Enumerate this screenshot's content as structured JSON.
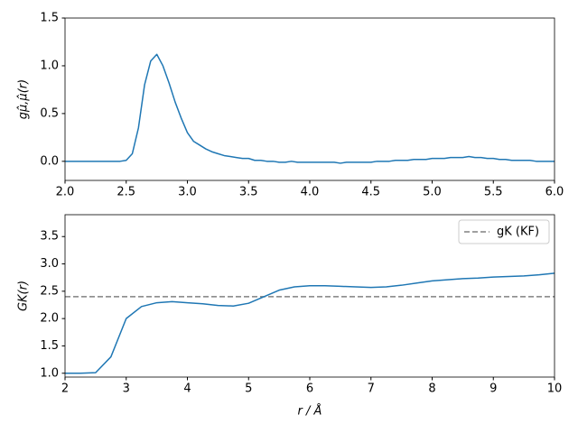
{
  "chart_data": [
    {
      "type": "line",
      "ylabel": "gμ̂,μ̂(r)",
      "x": [
        2.0,
        2.05,
        2.1,
        2.15,
        2.2,
        2.25,
        2.3,
        2.35,
        2.4,
        2.45,
        2.5,
        2.55,
        2.6,
        2.65,
        2.7,
        2.75,
        2.8,
        2.85,
        2.9,
        2.95,
        3.0,
        3.05,
        3.1,
        3.15,
        3.2,
        3.25,
        3.3,
        3.35,
        3.4,
        3.45,
        3.5,
        3.55,
        3.6,
        3.65,
        3.7,
        3.75,
        3.8,
        3.85,
        3.9,
        3.95,
        4.0,
        4.05,
        4.1,
        4.15,
        4.2,
        4.25,
        4.3,
        4.35,
        4.4,
        4.45,
        4.5,
        4.55,
        4.6,
        4.65,
        4.7,
        4.75,
        4.8,
        4.85,
        4.9,
        4.95,
        5.0,
        5.05,
        5.1,
        5.15,
        5.2,
        5.25,
        5.3,
        5.35,
        5.4,
        5.45,
        5.5,
        5.55,
        5.6,
        5.65,
        5.7,
        5.75,
        5.8,
        5.85,
        5.9,
        5.95,
        6.0
      ],
      "series": [
        {
          "color": "#1f77b4",
          "values": [
            0,
            0,
            0,
            0,
            0,
            0,
            0,
            0,
            0,
            0,
            0.01,
            0.08,
            0.35,
            0.8,
            1.05,
            1.12,
            1.0,
            0.82,
            0.62,
            0.45,
            0.3,
            0.21,
            0.17,
            0.13,
            0.1,
            0.08,
            0.06,
            0.05,
            0.04,
            0.03,
            0.03,
            0.01,
            0.01,
            0.0,
            0.0,
            -0.01,
            -0.01,
            0.0,
            -0.01,
            -0.01,
            -0.01,
            -0.01,
            -0.01,
            -0.01,
            -0.01,
            -0.02,
            -0.01,
            -0.01,
            -0.01,
            -0.01,
            -0.01,
            0.0,
            0.0,
            0.0,
            0.01,
            0.01,
            0.01,
            0.02,
            0.02,
            0.02,
            0.03,
            0.03,
            0.03,
            0.04,
            0.04,
            0.04,
            0.05,
            0.04,
            0.04,
            0.03,
            0.03,
            0.02,
            0.02,
            0.01,
            0.01,
            0.01,
            0.01,
            0.0,
            0.0,
            0.0,
            0.0
          ]
        }
      ],
      "xlim": [
        2,
        6
      ],
      "xticks": [
        {
          "value": 2,
          "label": "2.0"
        },
        {
          "value": 2.5,
          "label": "2.5"
        },
        {
          "value": 3,
          "label": "3.0"
        },
        {
          "value": 3.5,
          "label": "3.5"
        },
        {
          "value": 4,
          "label": "4.0"
        },
        {
          "value": 4.5,
          "label": "4.5"
        },
        {
          "value": 5,
          "label": "5.0"
        },
        {
          "value": 5.5,
          "label": "5.5"
        },
        {
          "value": 6,
          "label": "6.0"
        }
      ],
      "ylim": [
        -0.2,
        1.5
      ],
      "yticks": [
        {
          "value": 0,
          "label": "0.0"
        },
        {
          "value": 0.5,
          "label": "0.5"
        },
        {
          "value": 1,
          "label": "1.0"
        },
        {
          "value": 1.5,
          "label": "1.5"
        }
      ]
    },
    {
      "type": "line",
      "xlabel": "r / Å",
      "ylabel": "GK(r)",
      "x": [
        2.0,
        2.25,
        2.5,
        2.75,
        3.0,
        3.25,
        3.5,
        3.75,
        4.0,
        4.25,
        4.5,
        4.75,
        5.0,
        5.25,
        5.5,
        5.75,
        6.0,
        6.25,
        6.5,
        6.75,
        7.0,
        7.25,
        7.5,
        7.75,
        8.0,
        8.25,
        8.5,
        8.75,
        9.0,
        9.25,
        9.5,
        9.75,
        10.0
      ],
      "series": [
        {
          "color": "#1f77b4",
          "values": [
            1.0,
            1.0,
            1.01,
            1.3,
            2.0,
            2.22,
            2.29,
            2.31,
            2.29,
            2.27,
            2.24,
            2.23,
            2.28,
            2.4,
            2.52,
            2.58,
            2.6,
            2.6,
            2.59,
            2.58,
            2.57,
            2.58,
            2.61,
            2.65,
            2.69,
            2.71,
            2.73,
            2.74,
            2.76,
            2.77,
            2.78,
            2.8,
            2.83
          ]
        }
      ],
      "hlines": [
        {
          "name": "gK (KF)",
          "value": 2.4,
          "color": "#808080"
        }
      ],
      "legend": "upper right",
      "xlim": [
        2,
        10
      ],
      "xticks": [
        2,
        3,
        4,
        5,
        6,
        7,
        8,
        9,
        10
      ],
      "ylim": [
        0.93,
        3.9
      ],
      "yticks": [
        {
          "value": 1,
          "label": "1.0"
        },
        {
          "value": 1.5,
          "label": "1.5"
        },
        {
          "value": 2,
          "label": "2.0"
        },
        {
          "value": 2.5,
          "label": "2.5"
        },
        {
          "value": 3,
          "label": "3.0"
        },
        {
          "value": 3.5,
          "label": "3.5"
        }
      ]
    }
  ]
}
